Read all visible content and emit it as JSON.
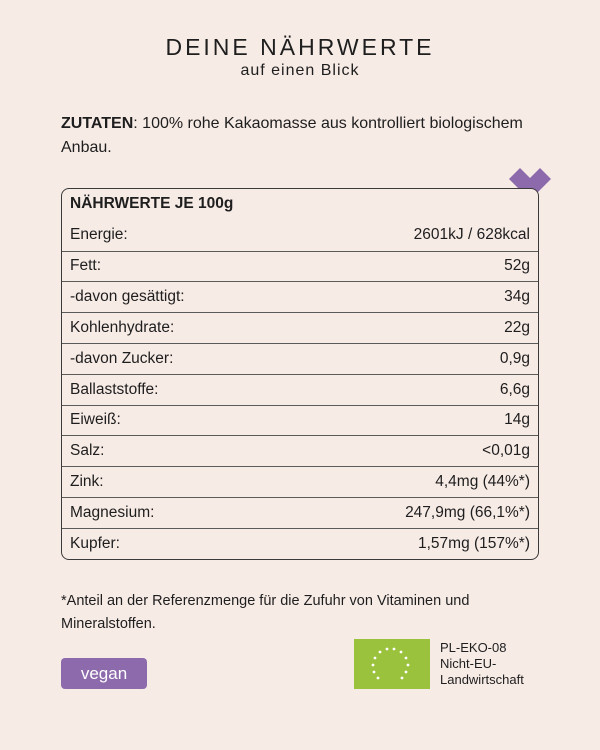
{
  "header": {
    "title": "DEINE NÄHRWERTE",
    "subtitle": "auf einen Blick"
  },
  "ingredients": {
    "label": "ZUTATEN",
    "text": ": 100% rohe Kakaomasse aus kontrolliert biologischem Anbau."
  },
  "nutrition": {
    "heading": "NÄHRWERTE JE 100g",
    "rows": [
      {
        "name": "Energie:",
        "value": "2601kJ / 628kcal"
      },
      {
        "name": "Fett:",
        "value": "52g"
      },
      {
        "name": "-davon gesättigt:",
        "value": "34g"
      },
      {
        "name": "Kohlenhydrate:",
        "value": "22g"
      },
      {
        "name": "-davon Zucker:",
        "value": "0,9g"
      },
      {
        "name": "Ballaststoffe:",
        "value": "6,6g"
      },
      {
        "name": "Eiweiß:",
        "value": "14g"
      },
      {
        "name": "Salz:",
        "value": "<0,01g"
      },
      {
        "name": "Zink:",
        "value": "4,4mg (44%*)"
      },
      {
        "name": "Magnesium:",
        "value": "247,9mg (66,1%*)"
      },
      {
        "name": "Kupfer:",
        "value": "1,57mg (157%*)"
      }
    ]
  },
  "footnote": "*Anteil an der Referenzmenge für die Zufuhr von Vitaminen und Mineralstoffen.",
  "badge": {
    "label": "vegan",
    "color": "#8d6aab"
  },
  "organic": {
    "code": "PL-EKO-08",
    "line2": "Nicht-EU-",
    "line3": "Landwirtschaft",
    "logo_color": "#9ac23c",
    "icon": "eu-organic-leaf-icon"
  },
  "accent": {
    "heart_color": "#8d6aab",
    "background": "#f7ebe6"
  }
}
